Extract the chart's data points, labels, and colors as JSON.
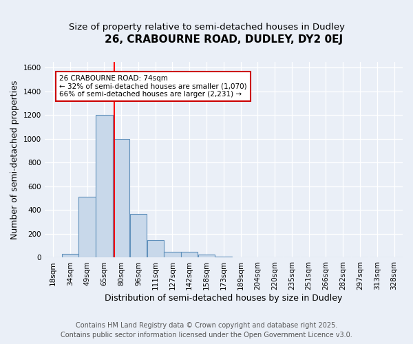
{
  "title": "26, CRABOURNE ROAD, DUDLEY, DY2 0EJ",
  "subtitle": "Size of property relative to semi-detached houses in Dudley",
  "xlabel": "Distribution of semi-detached houses by size in Dudley",
  "ylabel": "Number of semi-detached properties",
  "footer_line1": "Contains HM Land Registry data © Crown copyright and database right 2025.",
  "footer_line2": "Contains public sector information licensed under the Open Government Licence v3.0.",
  "bin_labels": [
    "18sqm",
    "34sqm",
    "49sqm",
    "65sqm",
    "80sqm",
    "96sqm",
    "111sqm",
    "127sqm",
    "142sqm",
    "158sqm",
    "173sqm",
    "189sqm",
    "204sqm",
    "220sqm",
    "235sqm",
    "251sqm",
    "266sqm",
    "282sqm",
    "297sqm",
    "313sqm",
    "328sqm"
  ],
  "bar_heights": [
    5,
    30,
    510,
    1200,
    1000,
    370,
    150,
    50,
    50,
    25,
    10,
    5,
    3,
    2,
    1,
    1,
    1,
    1,
    0,
    0,
    0
  ],
  "bar_color": "#c8d8ea",
  "bar_edge_color": "#6090bb",
  "property_label": "26 CRABOURNE ROAD: 74sqm",
  "annotation_line1": "← 32% of semi-detached houses are smaller (1,070)",
  "annotation_line2": "66% of semi-detached houses are larger (2,231) →",
  "annotation_box_color": "#cc0000",
  "ylim": [
    0,
    1650
  ],
  "yticks": [
    0,
    200,
    400,
    600,
    800,
    1000,
    1200,
    1400,
    1600
  ],
  "bg_color": "#eaeff7",
  "plot_bg_color": "#eaeff7",
  "grid_color": "#ffffff",
  "title_fontsize": 11,
  "subtitle_fontsize": 9.5,
  "axis_label_fontsize": 9,
  "tick_fontsize": 7.5,
  "footer_fontsize": 7
}
